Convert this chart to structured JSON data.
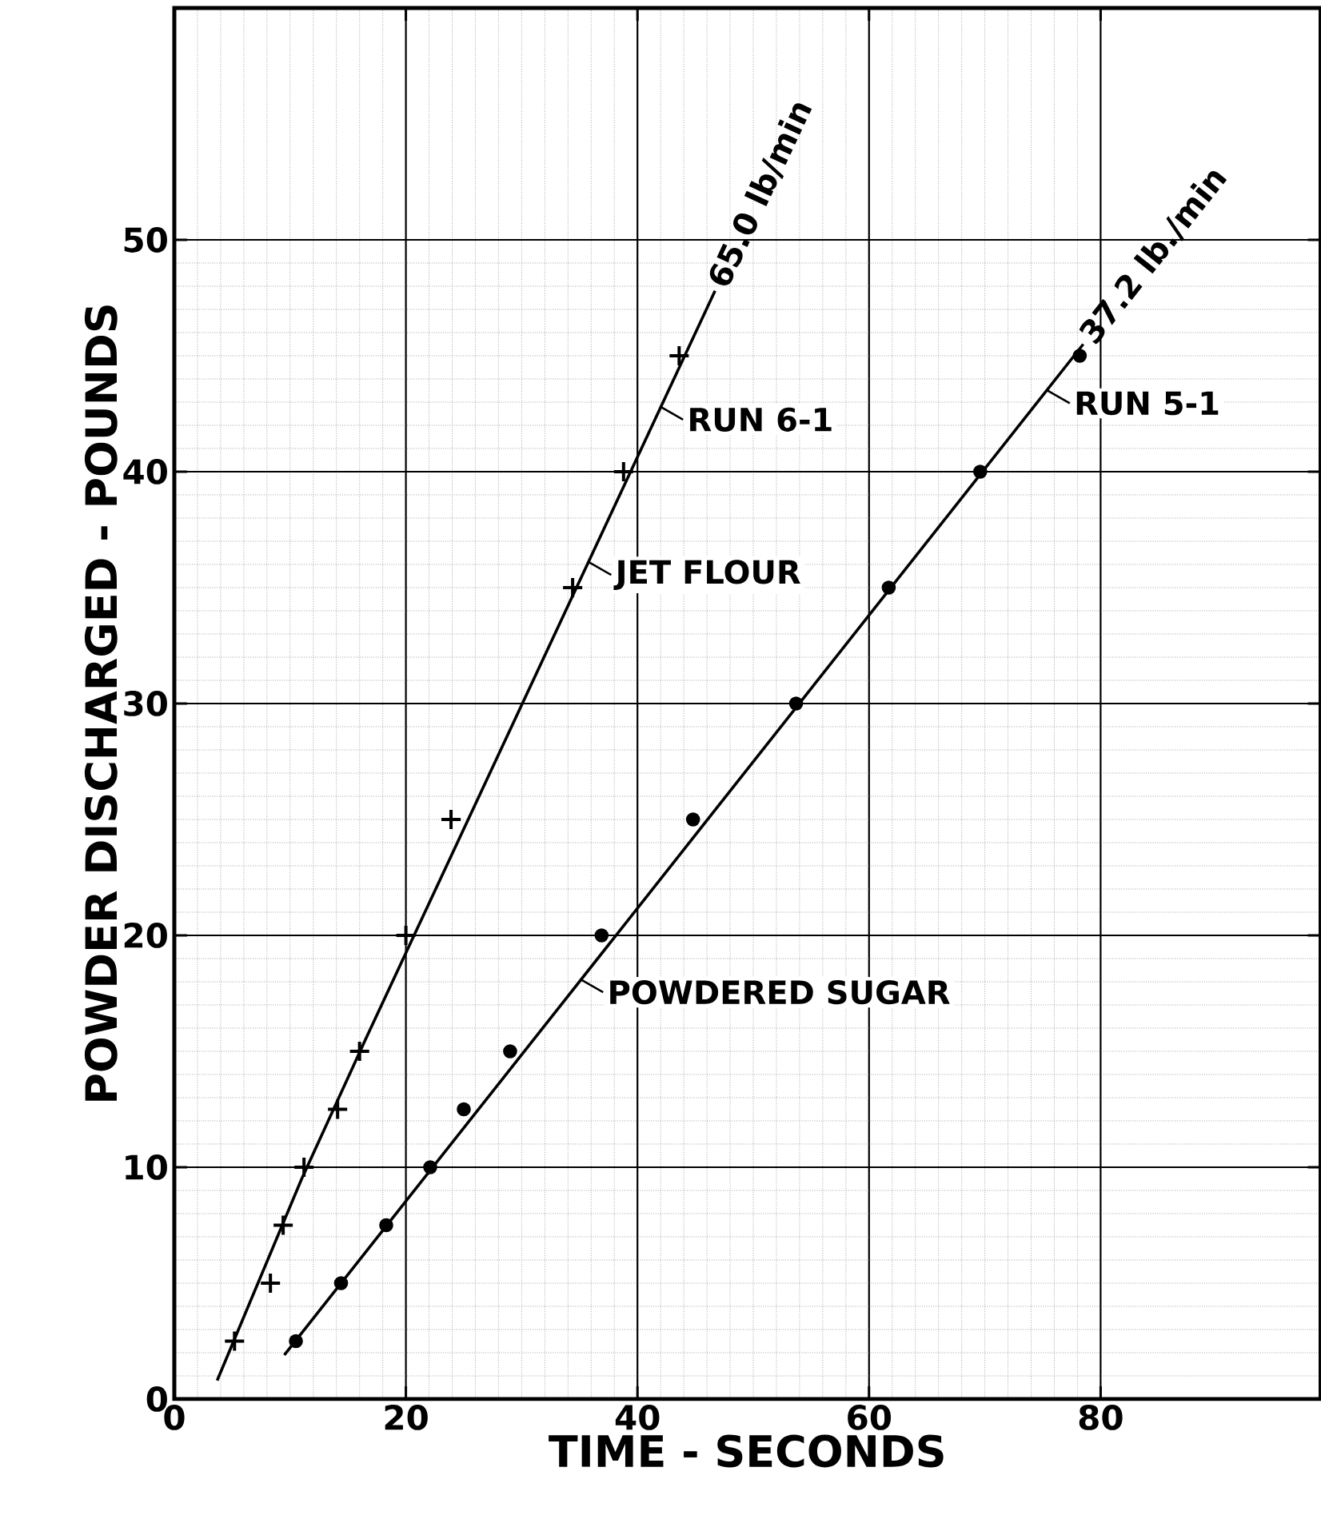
{
  "chart_data": {
    "type": "scatter",
    "xlabel": "TIME - SECONDS",
    "ylabel": "POWDER DISCHARGED - POUNDS",
    "xlim": [
      0,
      99
    ],
    "ylim": [
      0,
      60
    ],
    "xticks": [
      0,
      20,
      40,
      60,
      80
    ],
    "yticks": [
      0,
      10,
      20,
      30,
      40,
      50
    ],
    "grid": true,
    "series": [
      {
        "marker": "cross",
        "color": "#000000",
        "x": [
          5.2,
          8.3,
          9.4,
          11.2,
          14.1,
          16,
          20,
          23.9,
          34.4,
          38.8,
          43.6
        ],
        "values": [
          2.5,
          5,
          7.5,
          10,
          12.5,
          15,
          20,
          25,
          35,
          40,
          45
        ]
      },
      {
        "type": "line",
        "marker": "none",
        "color": "#000000",
        "name": "65.0 lb/min",
        "x": [
          3.7,
          11,
          16.5,
          46.7
        ],
        "values": [
          0.8,
          9.5,
          15.5,
          47.8
        ]
      },
      {
        "marker": "circle",
        "color": "#000000",
        "x": [
          10.5,
          14.4,
          18.3,
          22.1,
          25,
          29,
          36.9,
          44.8,
          53.7,
          61.7,
          69.6,
          78.2
        ],
        "values": [
          2.5,
          5,
          7.5,
          10,
          12.5,
          15,
          20,
          25,
          30,
          35,
          40,
          45
        ]
      },
      {
        "type": "line",
        "marker": "none",
        "color": "#000000",
        "name": "37.2 lb./min",
        "x": [
          9.5,
          78.5
        ],
        "values": [
          1.9,
          45.5
        ]
      }
    ],
    "annotations": [
      {
        "text": "RUN 6-1",
        "x": 42,
        "y": 42.8
      },
      {
        "text": "JET FLOUR",
        "x": 35.8,
        "y": 36.1
      },
      {
        "text": "RUN 5-1",
        "x": 75.4,
        "y": 43.5
      },
      {
        "text": "POWDERED SUGAR",
        "x": 35.1,
        "y": 18.1
      }
    ]
  }
}
